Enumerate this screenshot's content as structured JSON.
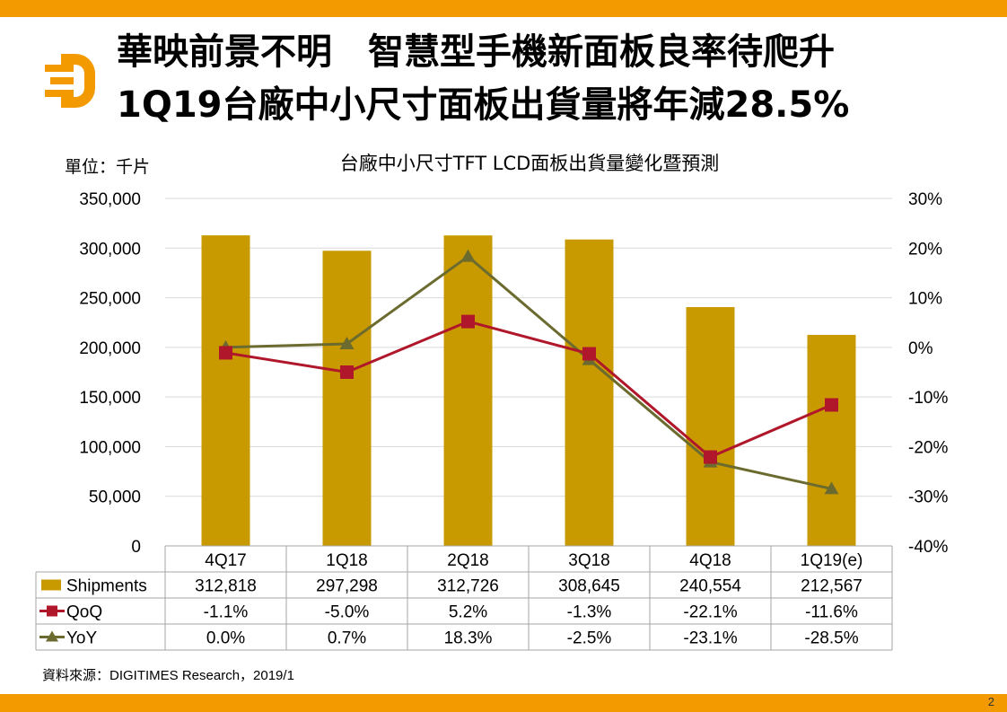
{
  "header": {
    "title_line1": "華映前景不明　智慧型手機新面板良率待爬升",
    "title_line2": "1Q19台廠中小尺寸面板出貨量將年減28.5%",
    "unit_label": "單位：千片"
  },
  "footer": {
    "source": "資料來源：DIGITIMES Research，2019/1",
    "page_number": "2"
  },
  "colors": {
    "accent": "#f29a00",
    "bar": "#c99a00",
    "qoq": "#b0172a",
    "yoy": "#6b6b2f",
    "grid": "#d9d9d9"
  },
  "chart_data": {
    "type": "bar",
    "title": "台廠中小尺寸TFT LCD面板出貨量變化暨預測",
    "categories": [
      "4Q17",
      "1Q18",
      "2Q18",
      "3Q18",
      "4Q18",
      "1Q19(e)"
    ],
    "left_axis": {
      "range": [
        0,
        350000
      ],
      "ticks": [
        0,
        50000,
        100000,
        150000,
        200000,
        250000,
        300000,
        350000
      ],
      "tick_labels": [
        "0",
        "50,000",
        "100,000",
        "150,000",
        "200,000",
        "250,000",
        "300,000",
        "350,000"
      ]
    },
    "right_axis": {
      "range": [
        -40,
        30
      ],
      "ticks": [
        -40,
        -30,
        -20,
        -10,
        0,
        10,
        20,
        30
      ],
      "tick_labels": [
        "-40%",
        "-30%",
        "-20%",
        "-10%",
        "0%",
        "10%",
        "20%",
        "30%"
      ]
    },
    "series": [
      {
        "name": "Shipments",
        "type": "bar",
        "axis": "left",
        "values": [
          312818,
          297298,
          312726,
          308645,
          240554,
          212567
        ],
        "labels": [
          "312,818",
          "297,298",
          "312,726",
          "308,645",
          "240,554",
          "212,567"
        ]
      },
      {
        "name": "QoQ",
        "type": "line",
        "axis": "right",
        "marker": "square",
        "values": [
          -1.1,
          -5.0,
          5.2,
          -1.3,
          -22.1,
          -11.6
        ],
        "labels": [
          "-1.1%",
          "-5.0%",
          "5.2%",
          "-1.3%",
          "-22.1%",
          "-11.6%"
        ]
      },
      {
        "name": "YoY",
        "type": "line",
        "axis": "right",
        "marker": "triangle",
        "values": [
          0.0,
          0.7,
          18.3,
          -2.5,
          -23.1,
          -28.5
        ],
        "labels": [
          "0.0%",
          "0.7%",
          "18.3%",
          "-2.5%",
          "-23.1%",
          "-28.5%"
        ]
      }
    ],
    "data_table": true,
    "grid": true
  }
}
